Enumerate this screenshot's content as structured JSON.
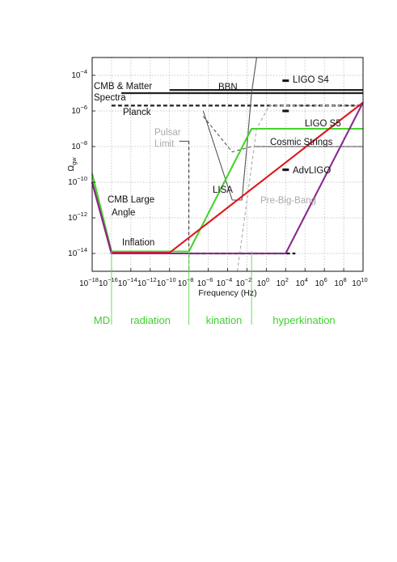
{
  "chart_data": {
    "type": "line",
    "xlabel": "Frequency (Hz)",
    "ylabel": "Ω_gw",
    "x_scale": "log",
    "y_scale": "log",
    "xlim": [
      1e-18,
      10000000000.0
    ],
    "ylim": [
      1e-15,
      0.001
    ],
    "grid": true,
    "x_ticks": [
      {
        "value": 1e-18,
        "base": "10",
        "exp": "−18"
      },
      {
        "value": 1e-16,
        "base": "10",
        "exp": "−16"
      },
      {
        "value": 1e-14,
        "base": "10",
        "exp": "−14"
      },
      {
        "value": 1e-12,
        "base": "10",
        "exp": "−12"
      },
      {
        "value": 1e-10,
        "base": "10",
        "exp": "−10"
      },
      {
        "value": 1e-08,
        "base": "10",
        "exp": "−8"
      },
      {
        "value": 1e-06,
        "base": "10",
        "exp": "−6"
      },
      {
        "value": 0.0001,
        "base": "10",
        "exp": "−4"
      },
      {
        "value": 0.01,
        "base": "10",
        "exp": "−2"
      },
      {
        "value": 1,
        "base": "10",
        "exp": "0"
      },
      {
        "value": 100.0,
        "base": "10",
        "exp": "2"
      },
      {
        "value": 10000.0,
        "base": "10",
        "exp": "4"
      },
      {
        "value": 1000000.0,
        "base": "10",
        "exp": "6"
      },
      {
        "value": 100000000.0,
        "base": "10",
        "exp": "8"
      },
      {
        "value": 10000000000.0,
        "base": "10",
        "exp": "10"
      }
    ],
    "y_ticks": [
      {
        "value": 0.0001,
        "base": "10",
        "exp": "−4"
      },
      {
        "value": 1e-06,
        "base": "10",
        "exp": "−6"
      },
      {
        "value": 1e-08,
        "base": "10",
        "exp": "−8"
      },
      {
        "value": 1e-10,
        "base": "10",
        "exp": "−10"
      },
      {
        "value": 1e-12,
        "base": "10",
        "exp": "−12"
      },
      {
        "value": 1e-14,
        "base": "10",
        "exp": "−14"
      }
    ],
    "series": [
      {
        "key": "black",
        "color": "#111111",
        "points": [
          [
            1e-18,
            1e-10
          ],
          [
            1e-16,
            1e-14
          ],
          [
            1e-08,
            1e-14
          ]
        ]
      },
      {
        "key": "green",
        "color": "#44d42a",
        "points": [
          [
            1e-18,
            3e-10
          ],
          [
            1e-16,
            1.3e-14
          ],
          [
            1e-08,
            1.3e-14
          ],
          [
            0.03,
            1e-07
          ],
          [
            10000000000.0,
            1e-07
          ]
        ]
      },
      {
        "key": "red",
        "color": "#e0161d",
        "points": [
          [
            1e-18,
            1e-10
          ],
          [
            1e-16,
            1.1e-14
          ],
          [
            1e-10,
            1.1e-14
          ],
          [
            10000000000.0,
            3e-06
          ]
        ]
      },
      {
        "key": "purple",
        "color": "#8a2a8c",
        "points": [
          [
            1e-18,
            1e-10
          ],
          [
            1e-16,
            1e-14
          ],
          [
            100.0,
            1e-14
          ],
          [
            10000000000.0,
            3e-06
          ]
        ]
      }
    ],
    "constraints": [
      {
        "key": "cmb-matter",
        "style": "solid-thick",
        "color": "#222222",
        "points": [
          [
            1e-15,
            1e-05
          ],
          [
            10000000000.0,
            1e-05
          ]
        ]
      },
      {
        "key": "planck",
        "style": "dashed-thick",
        "color": "#222222",
        "points": [
          [
            1e-16,
            2e-06
          ],
          [
            10000000000.0,
            2e-06
          ]
        ]
      },
      {
        "key": "bbn",
        "style": "solid-thick",
        "color": "#222222",
        "points": [
          [
            1e-10,
            1.5e-05
          ],
          [
            10000000000.0,
            1.5e-05
          ]
        ]
      },
      {
        "key": "cosmic-strings",
        "style": "dashed",
        "color": "#333333",
        "points": [
          [
            0.1,
            1e-08
          ],
          [
            10000000000.0,
            1e-08
          ]
        ]
      },
      {
        "key": "inflation",
        "style": "dashed-thick",
        "color": "#111111",
        "points": [
          [
            1e-08,
            1e-14
          ],
          [
            1000.0,
            1e-14
          ]
        ]
      },
      {
        "key": "pulsar-limit",
        "style": "dashed",
        "color": "#333333",
        "points": [
          [
            1e-08,
            2e-08
          ],
          [
            1e-08,
            1e-15
          ]
        ]
      },
      {
        "key": "pulsar-limit-tip",
        "style": "solid",
        "color": "#555555",
        "points": [
          [
            1e-09,
            2e-08
          ],
          [
            1e-08,
            2e-08
          ]
        ]
      },
      {
        "key": "lisa",
        "style": "solid",
        "color": "#555555",
        "points": [
          [
            3e-07,
            1e-06
          ],
          [
            0.0003,
            1e-11
          ],
          [
            0.003,
            1e-11
          ],
          [
            0.01,
            1e-08
          ],
          [
            0.03,
            1e-05
          ],
          [
            0.1,
            0.001
          ]
        ]
      },
      {
        "key": "lisa-dashed",
        "style": "dashed",
        "color": "#555555",
        "points": [
          [
            3e-07,
            5e-07
          ],
          [
            0.0003,
            5e-09
          ],
          [
            0.03,
            1e-08
          ],
          [
            10000000000.0,
            1e-08
          ]
        ]
      },
      {
        "key": "pre-big-bang",
        "style": "dashed",
        "color": "#aaaaaa",
        "points": [
          [
            0.001,
            1e-15
          ],
          [
            0.1,
            1e-07
          ],
          [
            2,
            2e-06
          ],
          [
            10000000000.0,
            2e-06
          ]
        ]
      }
    ],
    "detector_marks": [
      {
        "key": "ligo-s4",
        "x": 100.0,
        "y": 5e-05
      },
      {
        "key": "ligo-s5",
        "x": 100.0,
        "y": 1e-06
      },
      {
        "key": "advligo",
        "x": 100.0,
        "y": 5e-10
      }
    ],
    "era_dividers": [
      1e-16,
      1e-08,
      0.03
    ],
    "labels": {
      "cmb_matter_1": "CMB & Matter",
      "cmb_matter_2": "Spectra",
      "bbn": "BBN",
      "ligo_s4": "LIGO S4",
      "planck": "Planck",
      "ligo_s5": "LIGO S5",
      "pulsar_1": "Pulsar",
      "pulsar_2": "Limit",
      "cosmic_strings": "Cosmic  Strings",
      "advligo": "AdvLIGO",
      "lisa": "LISA",
      "cmb_large_1": "CMB Large",
      "cmb_large_2": "Angle",
      "pre_big_bang": "Pre-Big-Bang",
      "inflation": "Inflation"
    },
    "eras": [
      "MD",
      "radiation",
      "kination",
      "hyperkination"
    ]
  }
}
